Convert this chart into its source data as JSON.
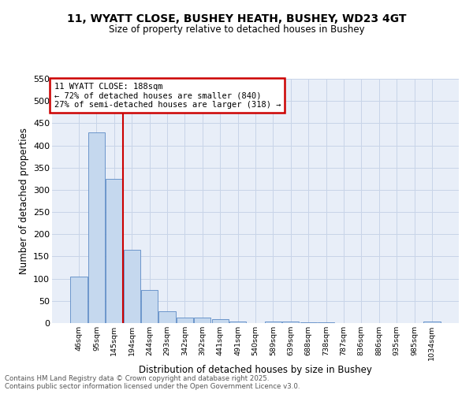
{
  "title_line1": "11, WYATT CLOSE, BUSHEY HEATH, BUSHEY, WD23 4GT",
  "title_line2": "Size of property relative to detached houses in Bushey",
  "xlabel": "Distribution of detached houses by size in Bushey",
  "ylabel": "Number of detached properties",
  "categories": [
    "46sqm",
    "95sqm",
    "145sqm",
    "194sqm",
    "244sqm",
    "293sqm",
    "342sqm",
    "392sqm",
    "441sqm",
    "491sqm",
    "540sqm",
    "589sqm",
    "639sqm",
    "688sqm",
    "738sqm",
    "787sqm",
    "836sqm",
    "886sqm",
    "935sqm",
    "985sqm",
    "1034sqm"
  ],
  "values": [
    105,
    430,
    325,
    165,
    75,
    27,
    12,
    12,
    9,
    3,
    0,
    4,
    4,
    2,
    1,
    0,
    0,
    0,
    0,
    0,
    3
  ],
  "bar_color": "#c5d8ee",
  "bar_edge_color": "#5b8ac5",
  "marker_label": "11 WYATT CLOSE: 188sqm",
  "annotation_line1": "← 72% of detached houses are smaller (840)",
  "annotation_line2": "27% of semi-detached houses are larger (318) →",
  "annotation_box_color": "#ffffff",
  "annotation_box_edge": "#cc0000",
  "vline_color": "#cc0000",
  "vline_x_index": 2.48,
  "ylim": [
    0,
    550
  ],
  "yticks": [
    0,
    50,
    100,
    150,
    200,
    250,
    300,
    350,
    400,
    450,
    500,
    550
  ],
  "grid_color": "#c8d4e8",
  "background_color": "#e8eef8",
  "footer_line1": "Contains HM Land Registry data © Crown copyright and database right 2025.",
  "footer_line2": "Contains public sector information licensed under the Open Government Licence v3.0."
}
